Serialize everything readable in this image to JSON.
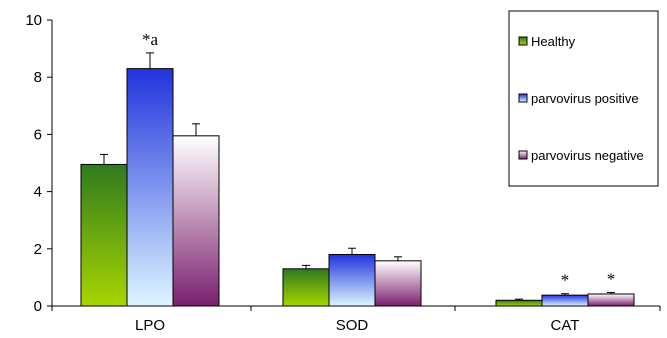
{
  "chart_data": {
    "type": "bar",
    "categories": [
      "LPO",
      "SOD",
      "CAT"
    ],
    "series": [
      {
        "name": "Healthy",
        "values": [
          4.95,
          1.3,
          0.2
        ],
        "errors": [
          0.35,
          0.12,
          0.04
        ],
        "color_top": "#2f7a1e",
        "color_bottom": "#a8d600"
      },
      {
        "name": "parvovirus positive",
        "values": [
          8.3,
          1.8,
          0.38
        ],
        "errors": [
          0.55,
          0.22,
          0.05
        ],
        "color_top": "#2233dd",
        "color_bottom": "#ddf6ff"
      },
      {
        "name": "parvovirus negative",
        "values": [
          5.95,
          1.58,
          0.42
        ],
        "errors": [
          0.42,
          0.14,
          0.05
        ],
        "color_top": "#ffffff",
        "color_bottom": "#7a1f6e"
      }
    ],
    "annotations": [
      {
        "category": 0,
        "series": 1,
        "text": "*a"
      },
      {
        "category": 2,
        "series": 1,
        "text": "*"
      },
      {
        "category": 2,
        "series": 2,
        "text": "*"
      }
    ],
    "ylim": [
      0,
      10
    ],
    "yticks": [
      "0",
      "2",
      "4",
      "6",
      "8",
      "10"
    ],
    "title": "",
    "xlabel": "",
    "ylabel": "",
    "legend_position": "top-right",
    "grid": false
  }
}
